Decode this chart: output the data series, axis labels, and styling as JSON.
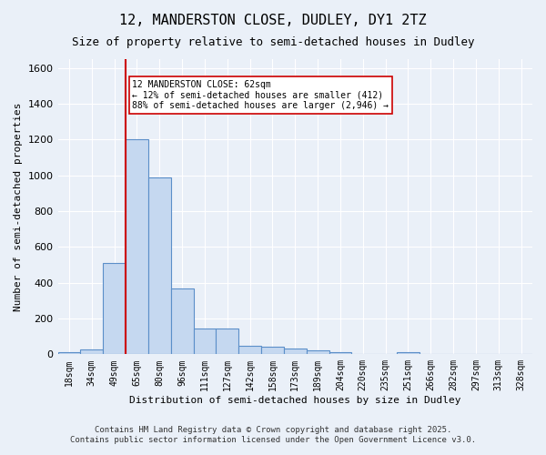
{
  "title_line1": "12, MANDERSTON CLOSE, DUDLEY, DY1 2TZ",
  "title_line2": "Size of property relative to semi-detached houses in Dudley",
  "xlabel": "Distribution of semi-detached houses by size in Dudley",
  "ylabel": "Number of semi-detached properties",
  "bin_labels": [
    "18sqm",
    "34sqm",
    "49sqm",
    "65sqm",
    "80sqm",
    "96sqm",
    "111sqm",
    "127sqm",
    "142sqm",
    "158sqm",
    "173sqm",
    "189sqm",
    "204sqm",
    "220sqm",
    "235sqm",
    "251sqm",
    "266sqm",
    "282sqm",
    "297sqm",
    "313sqm",
    "328sqm"
  ],
  "bar_heights": [
    10,
    25,
    510,
    1200,
    990,
    370,
    145,
    145,
    50,
    40,
    30,
    20,
    10,
    0,
    0,
    10,
    0,
    0,
    0,
    0,
    0
  ],
  "bar_color": "#c5d8f0",
  "bar_edge_color": "#5b8fc9",
  "property_line_x": 3,
  "property_sqm": 62,
  "property_label": "12 MANDERSTON CLOSE: 62sqm",
  "annotation_smaller": "← 12% of semi-detached houses are smaller (412)",
  "annotation_larger": "88% of semi-detached houses are larger (2,946) →",
  "vline_color": "#cc0000",
  "ylim": [
    0,
    1650
  ],
  "yticks": [
    0,
    200,
    400,
    600,
    800,
    1000,
    1200,
    1400,
    1600
  ],
  "footnote1": "Contains HM Land Registry data © Crown copyright and database right 2025.",
  "footnote2": "Contains public sector information licensed under the Open Government Licence v3.0.",
  "bg_color": "#eaf0f8",
  "plot_bg_color": "#eaf0f8",
  "grid_color": "#ffffff",
  "annotation_box_edge": "#cc0000",
  "annotation_box_face": "#ffffff"
}
